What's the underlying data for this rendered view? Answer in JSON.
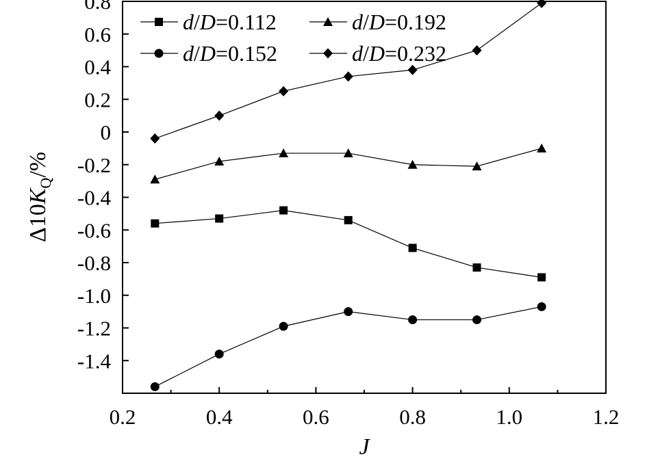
{
  "chart_data": {
    "type": "line",
    "title": "",
    "xlabel": "J",
    "ylabel": {
      "prefix": "Δ10",
      "variable": "K",
      "subscript": "Q",
      "suffix": "/%"
    },
    "xlim": [
      0.2,
      1.2
    ],
    "ylim": [
      -1.6,
      0.8
    ],
    "x_ticks": [
      0.2,
      0.4,
      0.6,
      0.8,
      1.0,
      1.2
    ],
    "x_tick_labels": [
      "0.2",
      "0.4",
      "0.6",
      "0.8",
      "1.0",
      "1.2"
    ],
    "y_ticks": [
      0.8,
      0.6,
      0.4,
      0.2,
      0,
      -0.2,
      -0.4,
      -0.6,
      -0.8,
      -1.0,
      -1.2,
      -1.4
    ],
    "y_tick_labels": [
      "0.8",
      "0.6",
      "0.4",
      "0.2",
      "0",
      "-0.2",
      "-0.4",
      "-0.6",
      "-0.8",
      "-1.0",
      "-1.2",
      "-1.4"
    ],
    "grid": false,
    "legend_position": "top",
    "x": [
      0.267,
      0.4,
      0.533,
      0.667,
      0.8,
      0.933,
      1.067
    ],
    "series": [
      {
        "name": "d/D=0.112",
        "name_var": "d",
        "name_var2": "D",
        "name_value": "=0.112",
        "marker": "square",
        "values": [
          -0.56,
          -0.53,
          -0.48,
          -0.54,
          -0.71,
          -0.83,
          -0.89
        ]
      },
      {
        "name": "d/D=0.152",
        "name_var": "d",
        "name_var2": "D",
        "name_value": "=0.152",
        "marker": "circle",
        "values": [
          -1.56,
          -1.36,
          -1.19,
          -1.1,
          -1.15,
          -1.15,
          -1.07
        ]
      },
      {
        "name": "d/D=0.192",
        "name_var": "d",
        "name_var2": "D",
        "name_value": "=0.192",
        "marker": "triangle",
        "values": [
          -0.29,
          -0.18,
          -0.13,
          -0.13,
          -0.2,
          -0.21,
          -0.1
        ]
      },
      {
        "name": "d/D=0.232",
        "name_var": "d",
        "name_var2": "D",
        "name_value": "=0.232",
        "marker": "diamond",
        "values": [
          -0.04,
          0.1,
          0.25,
          0.34,
          0.38,
          0.5,
          0.79
        ]
      }
    ]
  }
}
